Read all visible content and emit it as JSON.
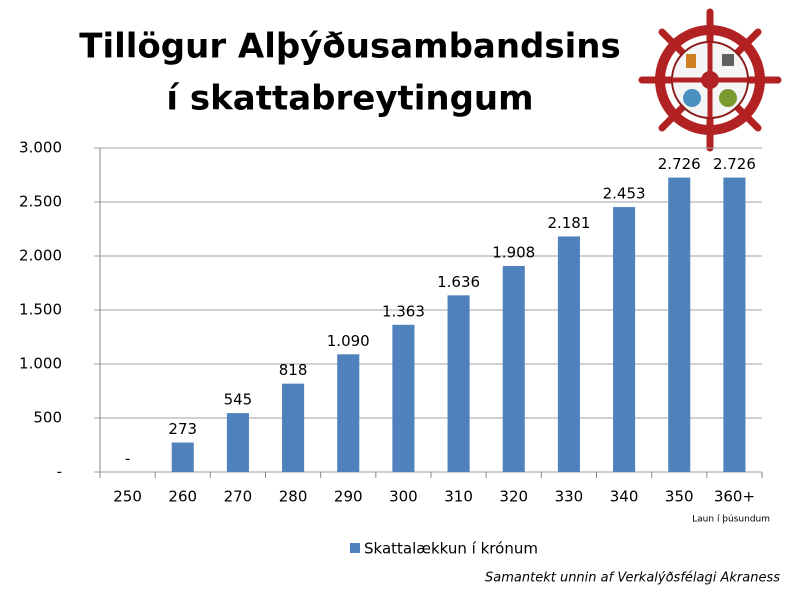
{
  "chart_data": {
    "type": "bar",
    "title": [
      "Tillögur Alþýðusambandsins",
      "í skattabreytingum"
    ],
    "categories": [
      "250",
      "260",
      "270",
      "280",
      "290",
      "300",
      "310",
      "320",
      "330",
      "340",
      "350",
      "360+"
    ],
    "series": [
      {
        "name": "Skattalækkun í krónum",
        "color": "#4f81bd",
        "values": [
          0,
          273,
          545,
          818,
          1090,
          1363,
          1636,
          1908,
          2181,
          2453,
          2726,
          2726
        ],
        "value_labels": [
          "-",
          "273",
          "545",
          "818",
          "1.090",
          "1.363",
          "1.636",
          "1.908",
          "2.181",
          "2.453",
          "2.726",
          "2.726"
        ]
      }
    ],
    "ylim": [
      0,
      3000
    ],
    "yticks": [
      {
        "value": 0,
        "label": "-"
      },
      500,
      {
        "value": 1000,
        "label": "1.000"
      },
      {
        "value": 1500,
        "label": "1.500"
      },
      {
        "value": 2000,
        "label": "2.000"
      },
      {
        "value": 2500,
        "label": "2.500"
      },
      {
        "value": 3000,
        "label": "3.000"
      }
    ],
    "x_label": "Laun í þúsundum",
    "note": "Samantekt unnin af Verkalýðsfélagi Akraness",
    "grid": true,
    "legend": "bottom"
  }
}
